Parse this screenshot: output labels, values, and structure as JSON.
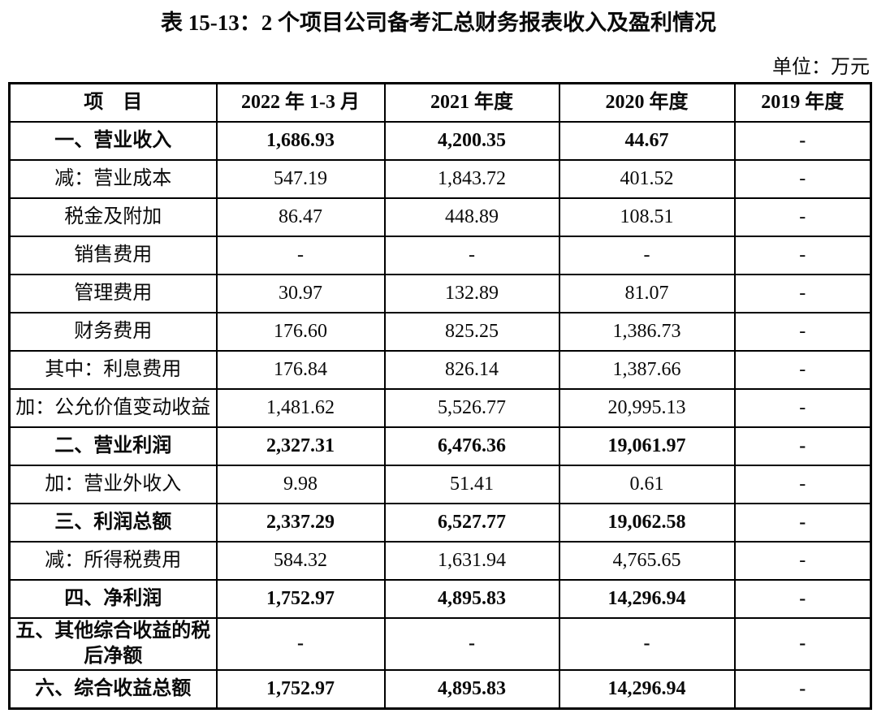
{
  "page": {
    "title": "表 15-13：2 个项目公司备考汇总财务报表收入及盈利情况",
    "unit_label": "单位：万元"
  },
  "table": {
    "columns": [
      "项　目",
      "2022 年 1-3 月",
      "2021 年度",
      "2020 年度",
      "2019 年度"
    ],
    "rows": [
      {
        "label": "一、营业收入",
        "bold": true,
        "values": [
          "1,686.93",
          "4,200.35",
          "44.67",
          "-"
        ]
      },
      {
        "label": "减：营业成本",
        "bold": false,
        "values": [
          "547.19",
          "1,843.72",
          "401.52",
          "-"
        ]
      },
      {
        "label": "税金及附加",
        "bold": false,
        "values": [
          "86.47",
          "448.89",
          "108.51",
          "-"
        ]
      },
      {
        "label": "销售费用",
        "bold": false,
        "values": [
          "-",
          "-",
          "-",
          "-"
        ]
      },
      {
        "label": "管理费用",
        "bold": false,
        "values": [
          "30.97",
          "132.89",
          "81.07",
          "-"
        ]
      },
      {
        "label": "财务费用",
        "bold": false,
        "values": [
          "176.60",
          "825.25",
          "1,386.73",
          "-"
        ]
      },
      {
        "label": "其中：利息费用",
        "bold": false,
        "values": [
          "176.84",
          "826.14",
          "1,387.66",
          "-"
        ]
      },
      {
        "label": "加：公允价值变动收益",
        "bold": false,
        "values": [
          "1,481.62",
          "5,526.77",
          "20,995.13",
          "-"
        ]
      },
      {
        "label": "二、营业利润",
        "bold": true,
        "values": [
          "2,327.31",
          "6,476.36",
          "19,061.97",
          "-"
        ]
      },
      {
        "label": "加：营业外收入",
        "bold": false,
        "values": [
          "9.98",
          "51.41",
          "0.61",
          "-"
        ]
      },
      {
        "label": "三、利润总额",
        "bold": true,
        "values": [
          "2,337.29",
          "6,527.77",
          "19,062.58",
          "-"
        ]
      },
      {
        "label": "减：所得税费用",
        "bold": false,
        "values": [
          "584.32",
          "1,631.94",
          "4,765.65",
          "-"
        ]
      },
      {
        "label": "四、净利润",
        "bold": true,
        "values": [
          "1,752.97",
          "4,895.83",
          "14,296.94",
          "-"
        ]
      },
      {
        "label": "五、其他综合收益的税后净额",
        "bold": true,
        "values": [
          "-",
          "-",
          "-",
          "-"
        ]
      },
      {
        "label": "六、综合收益总额",
        "bold": true,
        "values": [
          "1,752.97",
          "4,895.83",
          "14,296.94",
          "-"
        ]
      }
    ]
  },
  "colors": {
    "text": "#0a0a0a",
    "border": "#000000",
    "background": "#ffffff"
  }
}
